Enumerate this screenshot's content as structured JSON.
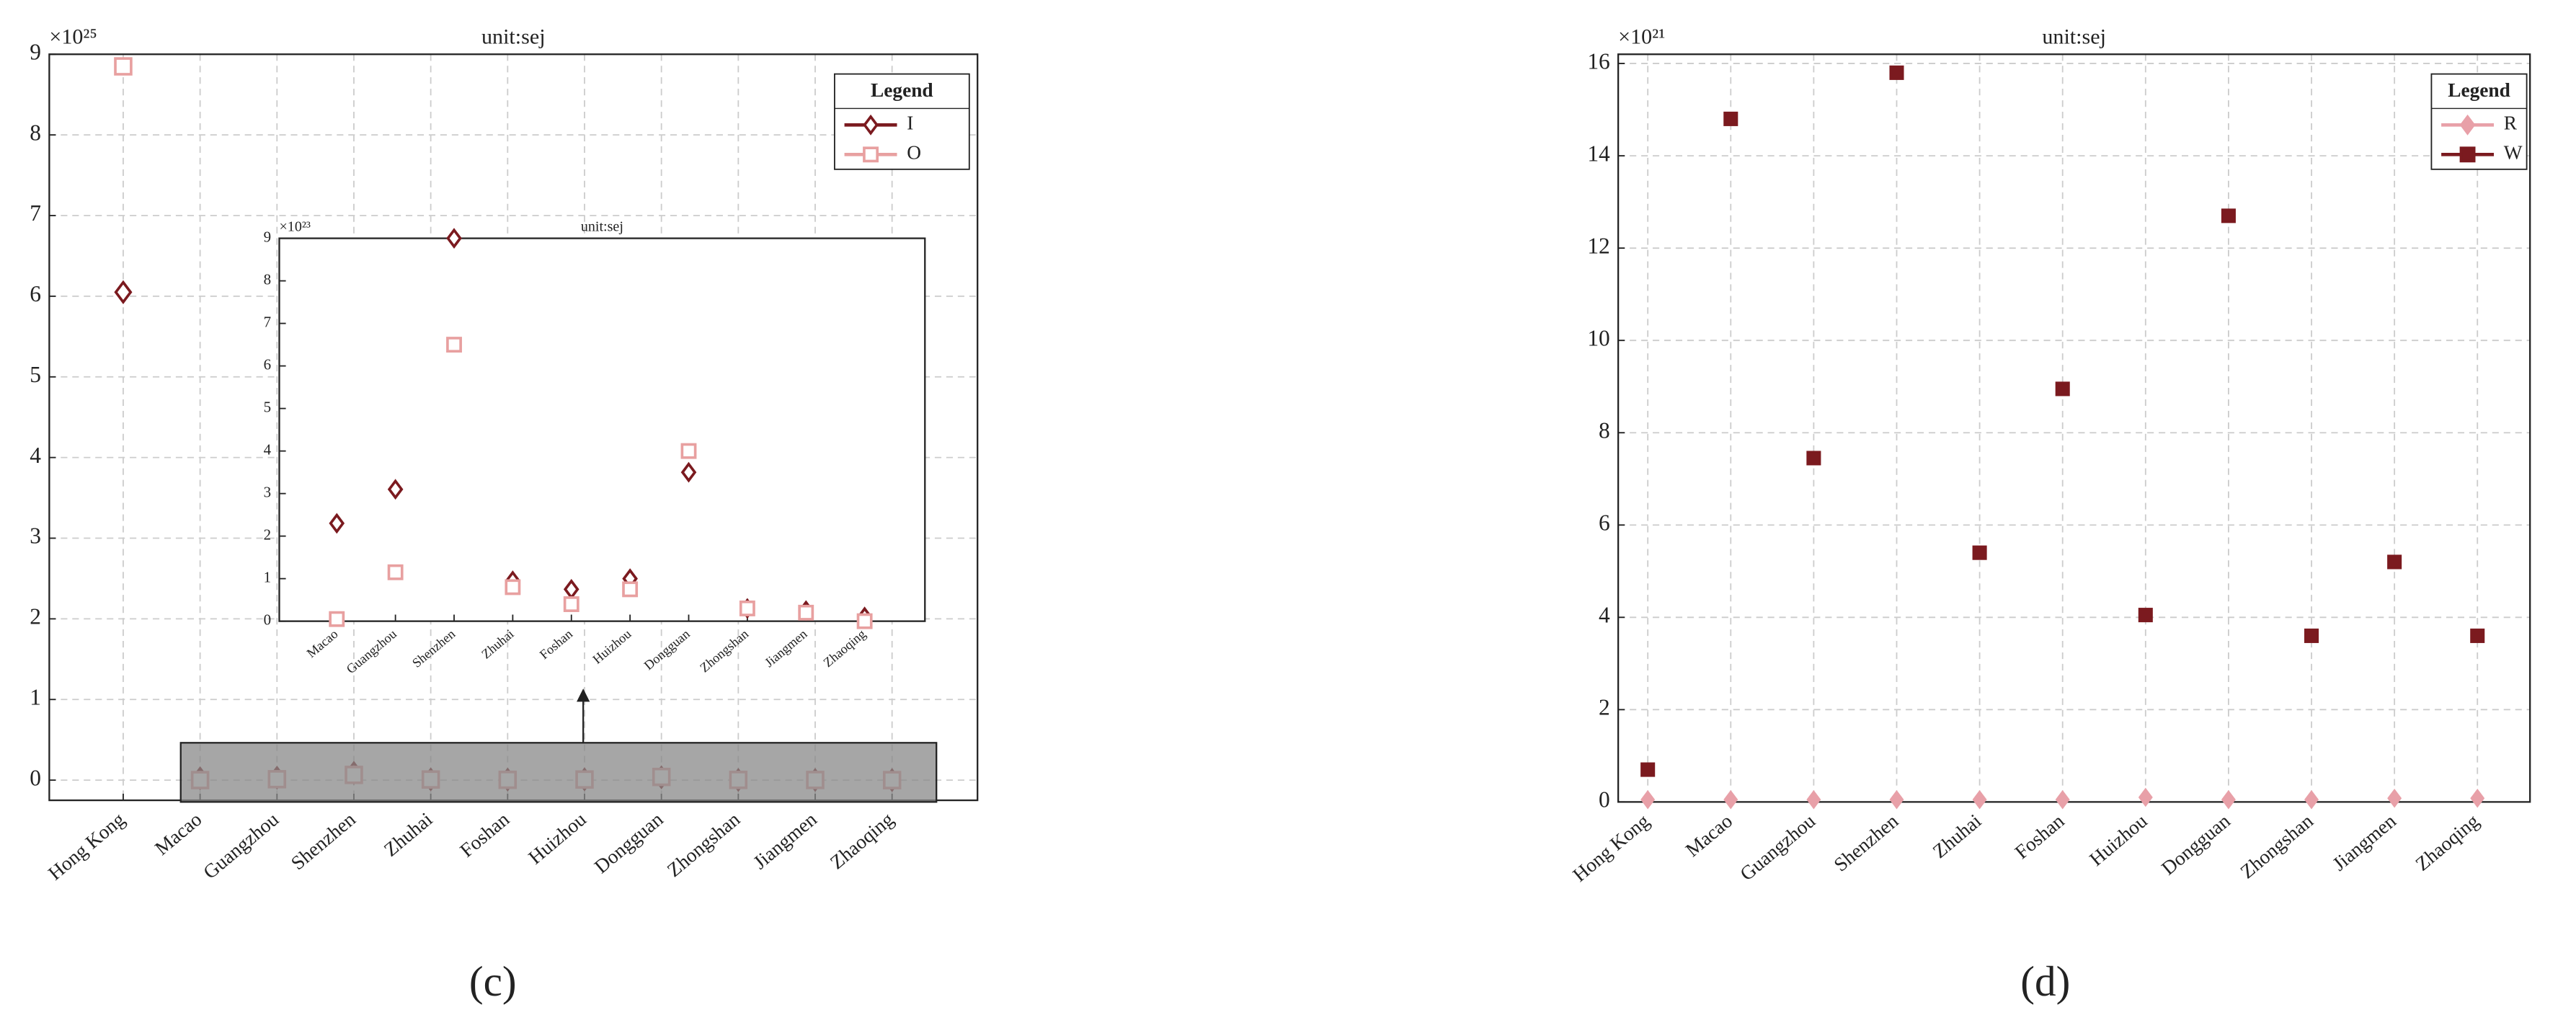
{
  "chart_data": [
    {
      "type": "line",
      "title": "unit:sej",
      "y_multiplier": "×10²⁵",
      "caption": "(c)",
      "categories": [
        "Hong Kong",
        "Macao",
        "Guangzhou",
        "Shenzhen",
        "Zhuhai",
        "Foshan",
        "Huizhou",
        "Dongguan",
        "Zhongshan",
        "Jiangmen",
        "Zhaoqing"
      ],
      "series": [
        {
          "name": "I",
          "color": "#7b1a1f",
          "marker": "diamond",
          "marker_fill": false,
          "values": [
            6.05,
            0.023,
            0.031,
            0.09,
            0.0095,
            0.0075,
            0.01,
            0.035,
            0.003,
            0.0025,
            0.001
          ]
        },
        {
          "name": "O",
          "color": "#e8a0a0",
          "marker": "square",
          "marker_fill": false,
          "values": [
            8.85,
            0.0005,
            0.0115,
            0.065,
            0.008,
            0.004,
            0.0075,
            0.04,
            0.003,
            0.002,
            0.0
          ]
        }
      ],
      "ylim": [
        -0.25,
        9
      ],
      "yticks": [
        0,
        1,
        2,
        3,
        4,
        5,
        6,
        7,
        8,
        9
      ],
      "grid": true,
      "legend_title": "Legend",
      "legend": "upper right"
    },
    {
      "type": "line",
      "title": "unit:sej",
      "y_multiplier": "×10²³",
      "categories": [
        "Macao",
        "Guangzhou",
        "Shenzhen",
        "Zhuhai",
        "Foshan",
        "Huizhou",
        "Dongguan",
        "Zhongshan",
        "Jiangmen",
        "Zhaoqing"
      ],
      "series": [
        {
          "name": "I",
          "color": "#7b1a1f",
          "marker": "diamond",
          "marker_fill": false,
          "values": [
            2.3,
            3.1,
            9.0,
            0.95,
            0.75,
            1.0,
            3.5,
            0.3,
            0.25,
            0.1
          ]
        },
        {
          "name": "O",
          "color": "#e8a0a0",
          "marker": "square",
          "marker_fill": false,
          "values": [
            0.05,
            1.15,
            6.5,
            0.8,
            0.4,
            0.75,
            4.0,
            0.3,
            0.2,
            0.0
          ]
        }
      ],
      "ylim": [
        0,
        9
      ],
      "yticks": [
        0,
        1,
        2,
        3,
        4,
        5,
        6,
        7,
        8,
        9
      ],
      "grid": false
    },
    {
      "type": "line",
      "title": "unit:sej",
      "y_multiplier": "×10²¹",
      "caption": "(d)",
      "categories": [
        "Hong Kong",
        "Macao",
        "Guangzhou",
        "Shenzhen",
        "Zhuhai",
        "Foshan",
        "Huizhou",
        "Dongguan",
        "Zhongshan",
        "Jiangmen",
        "Zhaoqing"
      ],
      "series": [
        {
          "name": "R",
          "color": "#e8a0a8",
          "marker": "diamond",
          "marker_fill": true,
          "values": [
            0.05,
            0.05,
            0.05,
            0.05,
            0.05,
            0.05,
            0.1,
            0.05,
            0.05,
            0.08,
            0.08
          ]
        },
        {
          "name": "W",
          "color": "#7b1a1f",
          "marker": "square",
          "marker_fill": true,
          "values": [
            0.7,
            14.8,
            7.45,
            15.8,
            5.4,
            8.95,
            4.05,
            12.7,
            3.6,
            5.2,
            3.6
          ]
        }
      ],
      "ylim": [
        0,
        16.2
      ],
      "yticks": [
        0,
        2,
        4,
        6,
        8,
        10,
        12,
        14,
        16
      ],
      "grid": true,
      "legend_title": "Legend",
      "legend": "upper right"
    }
  ]
}
